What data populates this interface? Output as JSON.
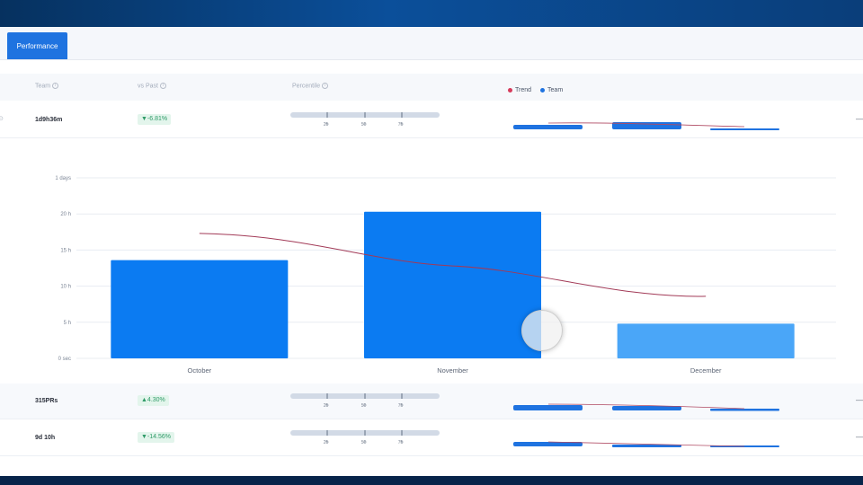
{
  "tabs": [
    {
      "label": "Performance",
      "active": true
    }
  ],
  "table": {
    "headers": {
      "team": "Team",
      "vs_past": "vs Past",
      "percentile": "Percentile"
    },
    "legend": [
      {
        "label": "Trend",
        "color": "#d63b5b"
      },
      {
        "label": "Team",
        "color": "#1f73e0"
      }
    ],
    "percentile_ticks": [
      {
        "num": "25",
        "suf": "th"
      },
      {
        "num": "50",
        "suf": "th"
      },
      {
        "num": "75",
        "suf": "th"
      }
    ],
    "rows": [
      {
        "team": "1d9h36m",
        "vs_past": "▼-6.81%"
      },
      {
        "team": "315PRs",
        "vs_past": "▲4.30%"
      },
      {
        "team": "9d 10h",
        "vs_past": "▼-14.56%"
      }
    ]
  },
  "chart_data": {
    "type": "bar",
    "categories": [
      "October",
      "November",
      "December"
    ],
    "y_tick_labels": [
      "0 sec",
      "5 h",
      "10 h",
      "15 h",
      "20 h",
      "1 days"
    ],
    "ylim_hours": [
      0,
      25
    ],
    "series": [
      {
        "name": "Team",
        "values_hours": [
          13.6,
          20.3,
          4.8
        ],
        "colors": [
          "#0b7bf2",
          "#0b7bf2",
          "#4aa6f8"
        ]
      },
      {
        "name": "Trend",
        "values_hours": [
          17.3,
          12.8,
          8.6
        ],
        "color": "#a23a57"
      }
    ],
    "grid": true
  }
}
